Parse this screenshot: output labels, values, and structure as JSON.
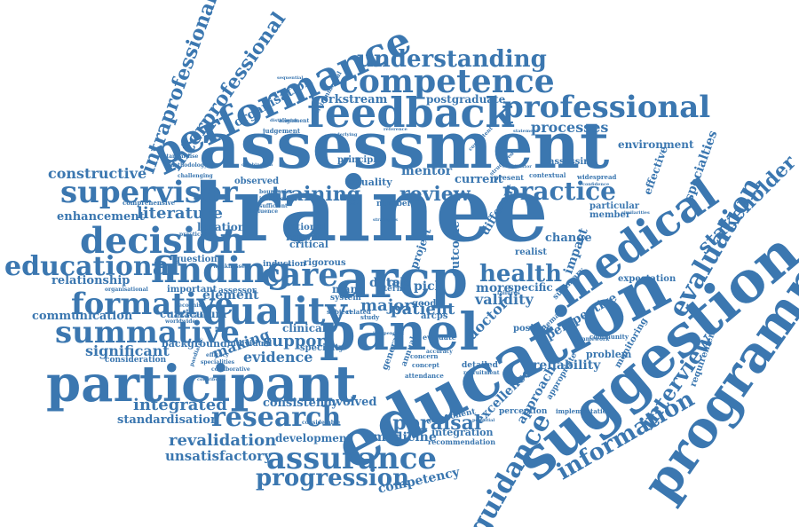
{
  "color": "#3b77b0",
  "background": "#ffffff",
  "words": [
    "trainee",
    "assessment",
    "education",
    "suggestion",
    "programme",
    "participant",
    "arcp",
    "panel",
    "performance",
    "feedback",
    "medical",
    "competence",
    "understanding",
    "professional",
    "supervisor",
    "decision",
    "educational",
    "finding",
    "care",
    "quality",
    "formative",
    "summative",
    "research",
    "assurance",
    "progression",
    "guidance",
    "information",
    "evaluation",
    "stakeholder",
    "practice",
    "training",
    "review",
    "health",
    "interview",
    "interprofessional",
    "intraprofessional",
    "constructive",
    "literature",
    "enhancement",
    "relationship",
    "communication",
    "significant",
    "integrated",
    "standardisation",
    "revalidation",
    "unsatisfactory",
    "appraisal",
    "medicine",
    "competency",
    "processes",
    "environment",
    "specialties",
    "effective",
    "reliability",
    "validity",
    "doctor",
    "patient",
    "major",
    "support",
    "evidence",
    "making",
    "element",
    "consistency",
    "involved",
    "development",
    "workstream",
    "postgraduate",
    "organisation",
    "perspective",
    "impact",
    "approach",
    "requirement",
    "change",
    "specific",
    "more",
    "data",
    "mentor",
    "current",
    "different",
    "outcome",
    "project",
    "integration",
    "recommendation",
    "excellence",
    "pich",
    "role",
    "curriculum",
    "background",
    "clinical",
    "critical",
    "rigorous",
    "induction",
    "national",
    "report",
    "equality",
    "principle",
    "observed",
    "location",
    "question",
    "important",
    "assessor",
    "individual",
    "specialty",
    "consideration",
    "comprehensive",
    "methodology",
    "judgement",
    "alignment",
    "distinguish",
    "standardise",
    "implementation",
    "monitoring",
    "expectation",
    "member",
    "particular",
    "community",
    "framework",
    "problem",
    "systematic",
    "summary",
    "positive",
    "realist",
    "evaluate",
    "detailed",
    "perception",
    "component",
    "concept",
    "annual",
    "general",
    "term",
    "present",
    "widespread",
    "contextual",
    "assessing",
    "number",
    "many",
    "environmental",
    "attendance",
    "concern",
    "system",
    "subject",
    "related",
    "study",
    "good",
    "arcps",
    "challenging",
    "practicable",
    "boundaries",
    "inefficient",
    "sufficient",
    "weaknesses",
    "efficacy",
    "specialities",
    "collaborative",
    "considerable",
    "worldwide",
    "contributes",
    "observation",
    "paediatric",
    "recognise",
    "organisational",
    "appropriate",
    "coordinator",
    "accuracy",
    "independent",
    "recruitment",
    "failures",
    "confidence",
    "similarities",
    "influence",
    "reference",
    "combination",
    "competent",
    "structured",
    "sequential",
    "strategies",
    "underlying",
    "potential",
    "statement"
  ]
}
